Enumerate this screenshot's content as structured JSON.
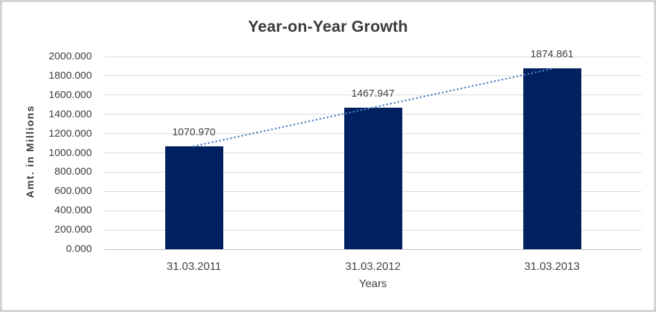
{
  "chart_data": {
    "type": "bar",
    "title": "Year-on-Year Growth",
    "xlabel": "Years",
    "ylabel": "Amt. in Millions",
    "categories": [
      "31.03.2011",
      "31.03.2012",
      "31.03.2013"
    ],
    "values": [
      1070.97,
      1467.947,
      1874.861
    ],
    "data_labels": [
      "1070.970",
      "1467.947",
      "1874.861"
    ],
    "ylim": [
      0,
      2000
    ],
    "ytick_step": 200,
    "ytick_labels": [
      "0.000",
      "200.000",
      "400.000",
      "600.000",
      "800.000",
      "1000.000",
      "1200.000",
      "1400.000",
      "1600.000",
      "1800.000",
      "2000.000"
    ],
    "grid": true,
    "legend": "none",
    "trendline": {
      "type": "linear",
      "style": "dotted"
    },
    "colors": {
      "bar": "#002060",
      "trendline": "#4b81c5",
      "gridline": "#d9d9d9",
      "axis_line": "#bfbfbf",
      "text": "#3f3f3f"
    }
  }
}
